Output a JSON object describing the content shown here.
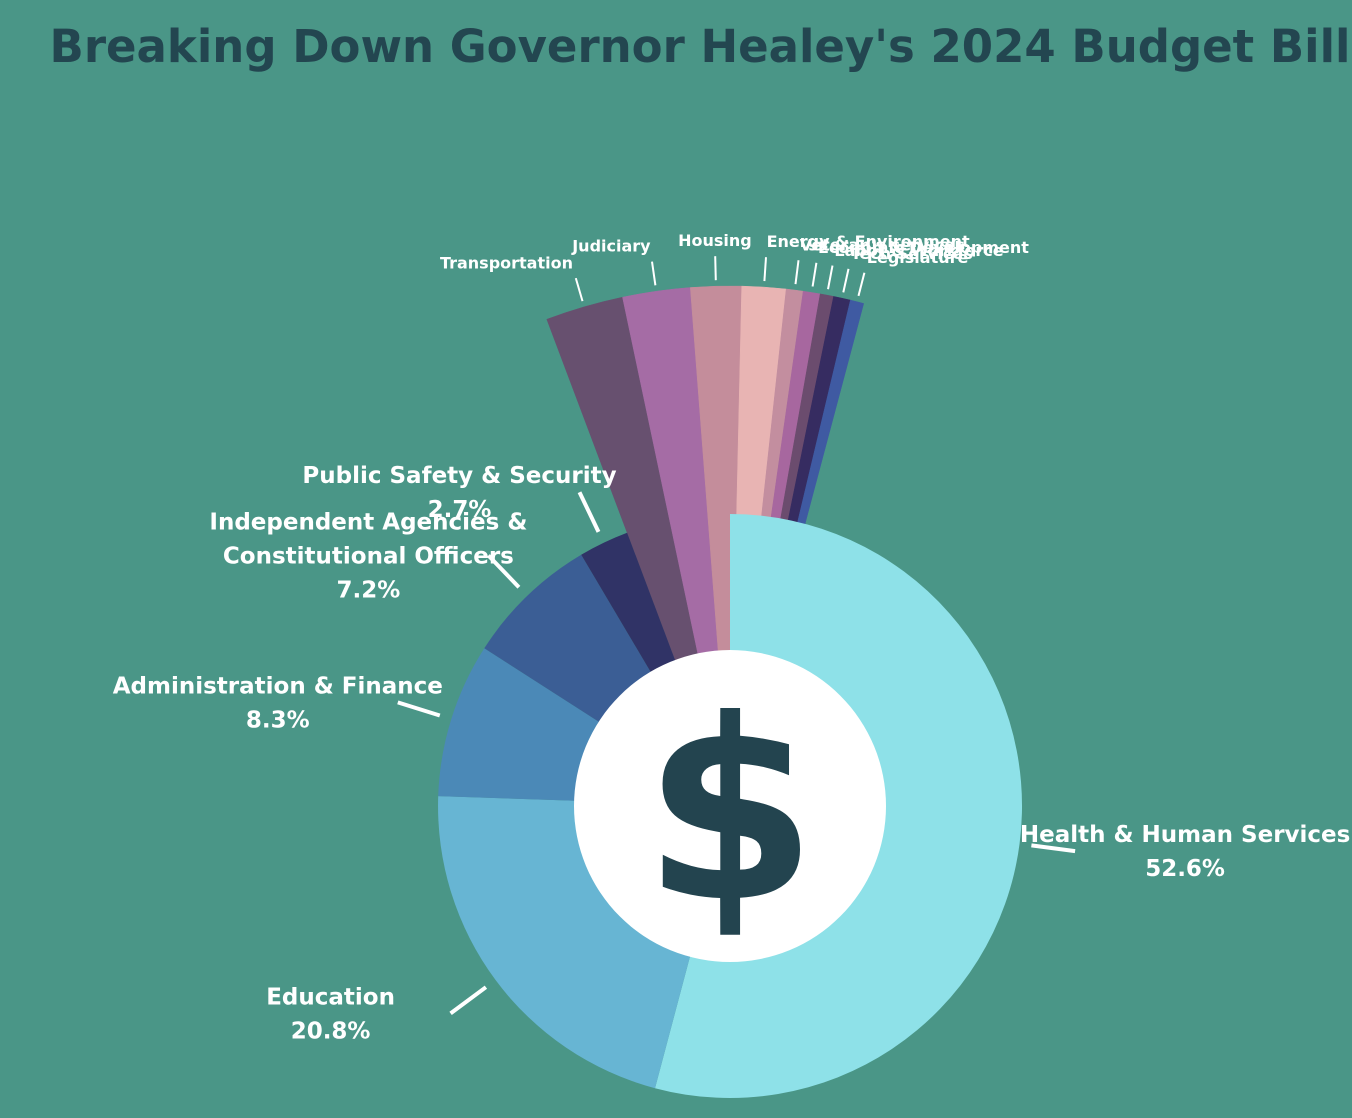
{
  "title": "Breaking Down Governor Healey's  2024 Budget Bill",
  "center_symbol": "$",
  "chart_data": {
    "type": "pie",
    "title": "Breaking Down Governor Healey's  2024 Budget Bill",
    "hole": true,
    "slices": [
      {
        "name": "Health & Human Services",
        "value": 52.6,
        "label": "52.6%",
        "color": "#8ee1e8"
      },
      {
        "name": "Education",
        "value": 20.8,
        "label": "20.8%",
        "color": "#67b5d3"
      },
      {
        "name": "Administration & Finance",
        "value": 8.3,
        "label": "8.3%",
        "color": "#4b89b7"
      },
      {
        "name": "Independent Agencies & Constitutional Officers",
        "value": 7.2,
        "label": "7.2%",
        "color": "#3b5e95"
      },
      {
        "name": "Public Safety & Security",
        "value": 2.7,
        "label": "2.7%",
        "color": "#303366"
      },
      {
        "name": "Transportation",
        "value": 2.3,
        "color": "#67506f"
      },
      {
        "name": "Judiciary",
        "value": 2.0,
        "color": "#a56ca5"
      },
      {
        "name": "Housing",
        "value": 1.5,
        "color": "#c48d9b"
      },
      {
        "name": "Energy & Environment",
        "value": 1.3,
        "color": "#e8b4b3"
      },
      {
        "name": "Veteran's services",
        "value": 0.5,
        "color": "#c38e9f"
      },
      {
        "name": "Economic Development",
        "value": 0.5,
        "color": "#a7679f"
      },
      {
        "name": "Labor & Workforce",
        "value": 0.4,
        "color": "#6b4c6e"
      },
      {
        "name": "Tech Services",
        "value": 0.5,
        "color": "#362c61"
      },
      {
        "name": "Legislature",
        "value": 0.4,
        "color": "#3f5aa2"
      }
    ]
  }
}
